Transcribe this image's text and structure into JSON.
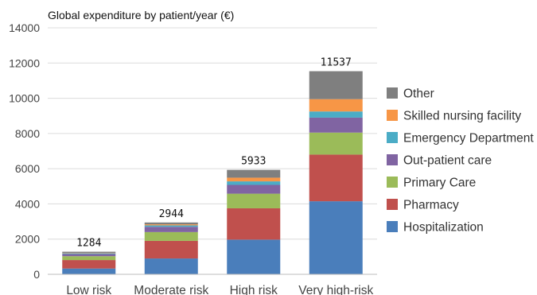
{
  "chart_data": {
    "type": "bar",
    "stacked": true,
    "title": "Global expenditure by patient/year (€)",
    "xlabel": "",
    "ylabel": "",
    "ylim": [
      0,
      14000
    ],
    "yticks": [
      0,
      2000,
      4000,
      6000,
      8000,
      10000,
      12000,
      14000
    ],
    "grid": true,
    "legend_position": "right",
    "categories": [
      "Low risk",
      "Moderate risk",
      "High risk",
      "Very high-risk"
    ],
    "totals": [
      1284,
      2944,
      5933,
      11537
    ],
    "series": [
      {
        "name": "Hospitalization",
        "color": "#4a7ebb",
        "values": [
          330,
          900,
          1970,
          4150
        ]
      },
      {
        "name": "Pharmacy",
        "color": "#c0504d",
        "values": [
          480,
          1000,
          1780,
          2650
        ]
      },
      {
        "name": "Primary Care",
        "color": "#9bbb59",
        "values": [
          220,
          500,
          830,
          1250
        ]
      },
      {
        "name": "Out-patient care",
        "color": "#8064a2",
        "values": [
          120,
          300,
          500,
          850
        ]
      },
      {
        "name": "Emergency Department",
        "color": "#4bacc6",
        "values": [
          40,
          80,
          200,
          350
        ]
      },
      {
        "name": "Skilled nursing facility",
        "color": "#f79646",
        "values": [
          20,
          60,
          210,
          700
        ]
      },
      {
        "name": "Other",
        "color": "#7f7f7f",
        "values": [
          74,
          104,
          443,
          1587
        ]
      }
    ]
  }
}
